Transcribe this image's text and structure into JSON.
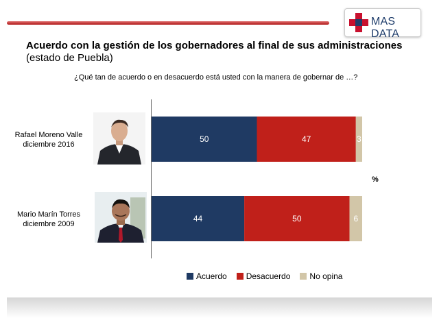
{
  "header": {
    "logo_text": "MAS DATA",
    "title": "Acuerdo con la gestión de los gobernadores al final de sus administraciones",
    "subtitle": "(estado de Puebla)",
    "question": "¿Qué tan de acuerdo o en desacuerdo está usted con la manera de gobernar de …?"
  },
  "colors": {
    "acuerdo": "#1f3a63",
    "desacuerdo": "#c0201a",
    "no_opina": "#d2c6a8",
    "brand_red": "#c8102e",
    "brand_blue": "#1f3d6b"
  },
  "chart_data": {
    "type": "bar",
    "orientation": "horizontal",
    "stacked": true,
    "unit": "%",
    "categories": [
      {
        "name": "Rafael Moreno Valle",
        "date": "diciembre 2016"
      },
      {
        "name": "Mario Marín Torres",
        "date": "diciembre 2009"
      }
    ],
    "series": [
      {
        "name": "Acuerdo",
        "values": [
          50,
          44
        ]
      },
      {
        "name": "Desacuerdo",
        "values": [
          47,
          50
        ]
      },
      {
        "name": "No opina",
        "values": [
          3,
          6
        ]
      }
    ],
    "xlim": [
      0,
      100
    ],
    "legend_position": "bottom"
  }
}
